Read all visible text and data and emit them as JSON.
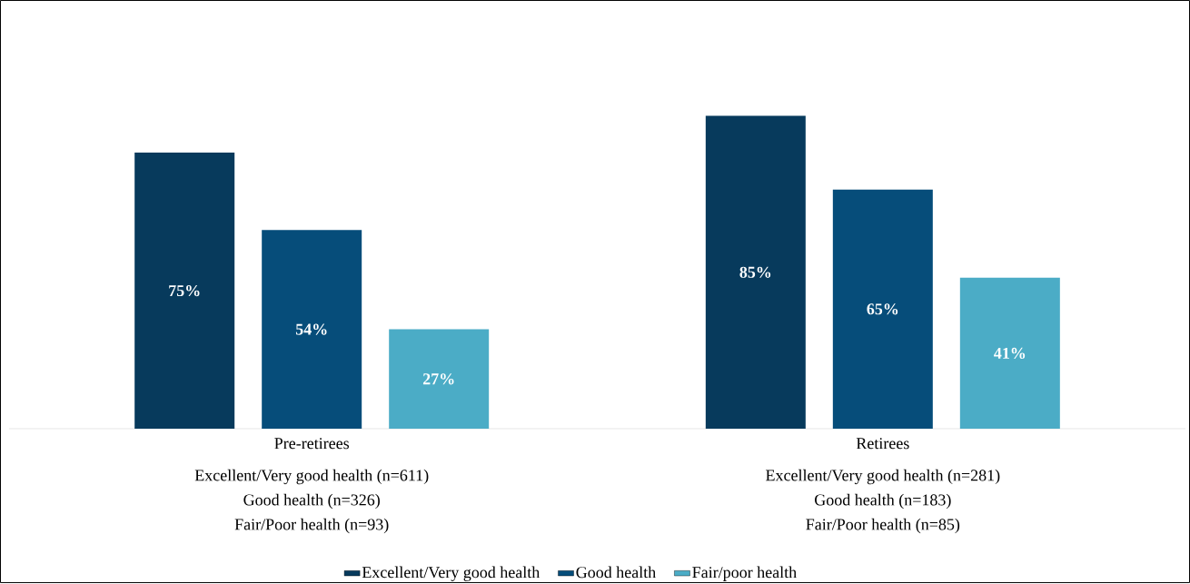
{
  "chart_data": {
    "type": "bar",
    "categories": [
      "Pre-retirees",
      "Retirees"
    ],
    "annotations": [
      "Excellent/Very good health (n=611)",
      "Good health (n=326)",
      "Fair/Poor health (n=93)",
      "Excellent/Very good health (n=281)",
      "Good health (n=183)",
      "Fair/Poor health (n=85)"
    ],
    "legend": "bottom",
    "series": [
      {
        "name": "Excellent/Very good health",
        "color": "#073a5c",
        "values": [
          75,
          85
        ],
        "value_labels": [
          "75%",
          "85%"
        ]
      },
      {
        "name": "Good health",
        "color": "#064d7a",
        "values": [
          54,
          65
        ],
        "value_labels": [
          "54%",
          "65%"
        ]
      },
      {
        "name": "Fair/poor health",
        "color": "#4bacc6",
        "values": [
          27,
          41
        ],
        "value_labels": [
          "27%",
          "41%"
        ]
      }
    ]
  }
}
